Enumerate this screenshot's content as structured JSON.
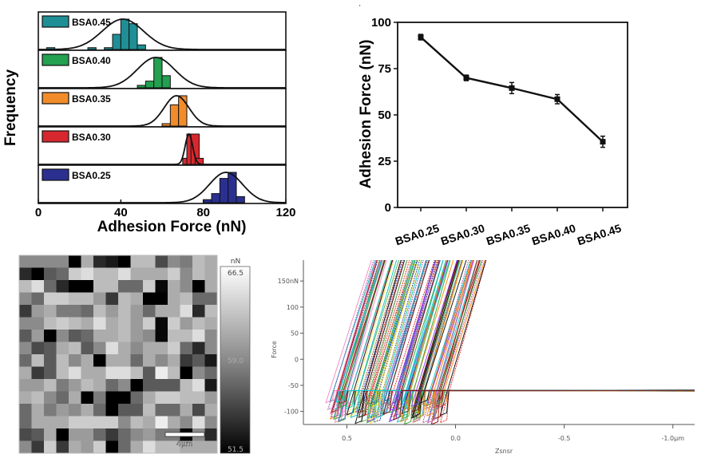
{
  "chart_data": [
    {
      "id": "histograms",
      "type": "bar",
      "title": "",
      "xlabel": "Adhesion Force (nN)",
      "ylabel": "Frequency",
      "xlim": [
        0,
        120
      ],
      "xticks": [
        "0",
        "40",
        "80",
        "120"
      ],
      "xtick_values": [
        0,
        40,
        80,
        120
      ],
      "legend_placement": "top-left of each panel",
      "bin_width": 4,
      "series": [
        {
          "name": "BSA0.45",
          "color": "#1f8f95",
          "bins_start": [
            4,
            24,
            32,
            36,
            40,
            44,
            48
          ],
          "values": [
            0.06,
            0.06,
            0.06,
            0.5,
            1.0,
            0.85,
            0.15
          ],
          "fit_mean": 41,
          "fit_sd": 10
        },
        {
          "name": "BSA0.40",
          "color": "#23a050",
          "bins_start": [
            48,
            52,
            56,
            60
          ],
          "values": [
            0.08,
            0.22,
            1.0,
            0.4
          ],
          "fit_mean": 57,
          "fit_sd": 9
        },
        {
          "name": "BSA0.35",
          "color": "#f28c2a",
          "bins_start": [
            60,
            64,
            68
          ],
          "values": [
            0.08,
            0.7,
            1.0
          ],
          "fit_mean": 67,
          "fit_sd": 6
        },
        {
          "name": "BSA0.30",
          "color": "#d6282e",
          "bins_start": [
            70,
            72,
            74,
            76
          ],
          "values": [
            0.2,
            1.0,
            1.0,
            0.2
          ],
          "fit_mean": 73,
          "fit_sd": 1.8
        },
        {
          "name": "BSA0.25",
          "color": "#2b3090",
          "bins_start": [
            80,
            84,
            88,
            92,
            96
          ],
          "values": [
            0.1,
            0.3,
            0.8,
            1.0,
            0.2
          ],
          "fit_mean": 91,
          "fit_sd": 8
        }
      ]
    },
    {
      "id": "mean-adhesion",
      "type": "line",
      "title": "",
      "xlabel": "",
      "ylabel": "Adhesion Force (nN)",
      "ylim": [
        0,
        100
      ],
      "yticks": [
        "0",
        "25",
        "50",
        "75",
        "100"
      ],
      "ytick_values": [
        0,
        25,
        50,
        75,
        100
      ],
      "categories": [
        "BSA0.25",
        "BSA0.30",
        "BSA0.35",
        "BSA0.40",
        "BSA0.45"
      ],
      "series": [
        {
          "name": "Adhesion Force",
          "values": [
            92,
            70,
            64.5,
            58.5,
            35.5
          ],
          "errors": [
            1.5,
            1.5,
            3,
            2.5,
            3
          ]
        }
      ]
    },
    {
      "id": "adhesion-map",
      "type": "heatmap",
      "title": "",
      "colorbar_unit": "nN",
      "colorbar_labels": [
        "66.5",
        "59.0",
        "51.5"
      ],
      "zlim": [
        51.5,
        66.5
      ],
      "scale_bar_label": "4μm",
      "rows": 16,
      "cols": 16,
      "values": [
        [
          60,
          60,
          60,
          60,
          51.5,
          62,
          54,
          53,
          51.5,
          63,
          63,
          56,
          60,
          59,
          63,
          62
        ],
        [
          54,
          51.5,
          57,
          58,
          64,
          65,
          63,
          63,
          65,
          62,
          62,
          62,
          64,
          60,
          63,
          62
        ],
        [
          63,
          65,
          58,
          54,
          51.5,
          51.5,
          63,
          63,
          58,
          58,
          64,
          52,
          62,
          60,
          51.5,
          62
        ],
        [
          60,
          58,
          64,
          64,
          63,
          63,
          61,
          55,
          63,
          62,
          51.5,
          51.5,
          62,
          63,
          58,
          58
        ],
        [
          55,
          61,
          62,
          59,
          59,
          58,
          63,
          61,
          63,
          61,
          58,
          62,
          62,
          65,
          54,
          63
        ],
        [
          60,
          60,
          63,
          64,
          63,
          62,
          65,
          62,
          63,
          61,
          64,
          52,
          64,
          61,
          63,
          62
        ],
        [
          57,
          61,
          51.5,
          60,
          57,
          58,
          62,
          62,
          63,
          61,
          60,
          52,
          63,
          63,
          65,
          60
        ],
        [
          60,
          56,
          57,
          62,
          63,
          57,
          60,
          65,
          62,
          60,
          62,
          62,
          64,
          58,
          54,
          60
        ],
        [
          58,
          63,
          57,
          63,
          60,
          62,
          51.5,
          62,
          62,
          58,
          62,
          60,
          62,
          55,
          57,
          53
        ],
        [
          62,
          55,
          57,
          63,
          65,
          62,
          62,
          65,
          65,
          63,
          57,
          66,
          63,
          51.5,
          60,
          58
        ],
        [
          61,
          61,
          63,
          59,
          61,
          63,
          62,
          58,
          60,
          51.5,
          57,
          57,
          57,
          63,
          65,
          53
        ],
        [
          62,
          63,
          60,
          58,
          62,
          51.5,
          59,
          51.5,
          51.5,
          58,
          62,
          64,
          64,
          63,
          63,
          61
        ],
        [
          58,
          62,
          59,
          61,
          60,
          62,
          58,
          51.5,
          57,
          57,
          63,
          58,
          58,
          62,
          56,
          62
        ],
        [
          58,
          62,
          62,
          62,
          64,
          64,
          64,
          64,
          60,
          63,
          62,
          66,
          62,
          60,
          65,
          60
        ],
        [
          56,
          57,
          62,
          51.5,
          61,
          61,
          58,
          55,
          58,
          60,
          61,
          59,
          59,
          51.5,
          60,
          54
        ],
        [
          60,
          55,
          64,
          55,
          62,
          61,
          64,
          51.5,
          58,
          62,
          65,
          63,
          63,
          62,
          62,
          62
        ]
      ]
    },
    {
      "id": "force-curves",
      "type": "line",
      "title": "",
      "xlabel": "Zsnsr",
      "ylabel": "Force",
      "xlim": [
        0.7,
        -1.1
      ],
      "ylim": [
        -125,
        190
      ],
      "xticks": [
        "0.5",
        "0.0",
        "-0.5",
        "-1.0μm"
      ],
      "xtick_values": [
        0.5,
        0.0,
        -0.5,
        -1.0
      ],
      "yticks": [
        "150nN",
        "100",
        "50",
        "0",
        "-50",
        "-100"
      ],
      "ytick_values": [
        150,
        100,
        50,
        0,
        -50,
        -100
      ],
      "baseline_force": -60,
      "curve_count": 120,
      "contact_point_range": [
        0.05,
        0.58
      ],
      "slope_nN_per_um": -1150,
      "palette": [
        "#e41a1c",
        "#377eb8",
        "#4daf4a",
        "#984ea3",
        "#ff7f00",
        "#000000",
        "#a65628",
        "#f781bf",
        "#00bfc4",
        "#1f3fbf",
        "#2ca02c",
        "#9b30ff",
        "#ffd700",
        "#00ced1",
        "#8b0000"
      ]
    }
  ]
}
